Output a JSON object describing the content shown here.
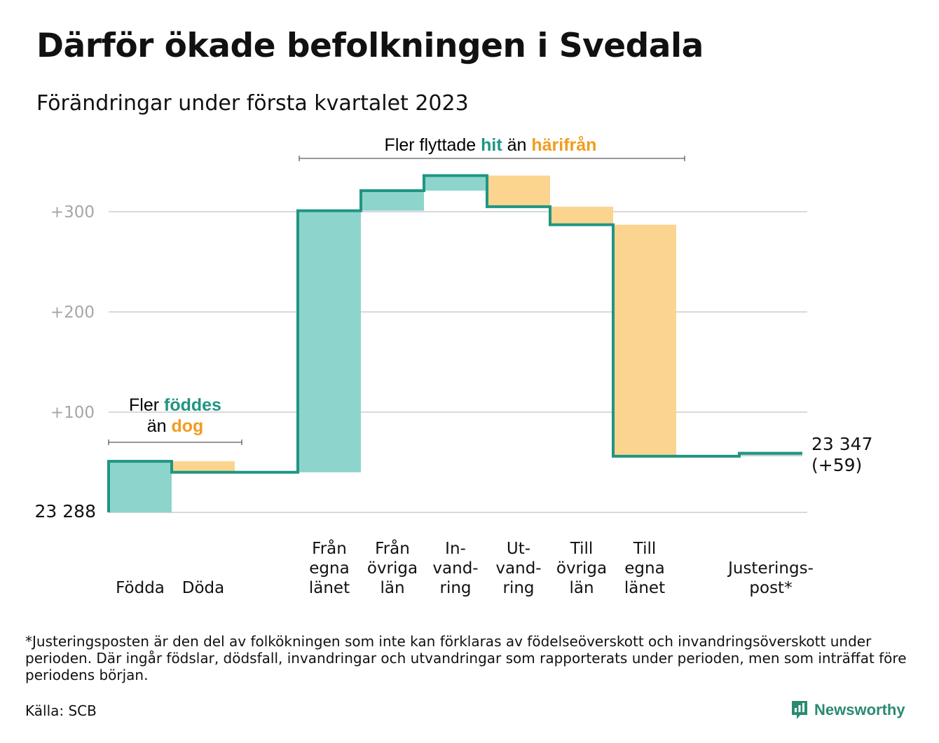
{
  "header": {
    "title": "Därför ökade befolkningen i Svedala",
    "subtitle": "Förändringar under första kvartalet 2023"
  },
  "annotations": {
    "births_line1_prefix": "Fler ",
    "births_line1_highlight": "föddes",
    "births_line2_prefix": "än ",
    "births_line2_highlight": "dog",
    "migration_prefix": "Fler flyttade ",
    "migration_hit": "hit",
    "migration_mid": " än ",
    "migration_from": "härifrån"
  },
  "colors": {
    "positive_fill": "#8dd5cc",
    "negative_fill": "#fbd58f",
    "adjustment_fill": "#c5cfcc",
    "step_line": "#1f9583",
    "highlight_teal": "#1f9583",
    "highlight_orange": "#f29c1f",
    "grid": "#d9d9d9",
    "tick_text": "#a6a6a6"
  },
  "chart_data": {
    "type": "waterfall",
    "start_value": 23288,
    "start_label": "23 288",
    "end_value": 23347,
    "end_label_line1": "23 347",
    "end_label_line2": "(+59)",
    "y_ticks": [
      {
        "value": 100,
        "label": "+100"
      },
      {
        "value": 200,
        "label": "+200"
      },
      {
        "value": 300,
        "label": "+300"
      }
    ],
    "ylim": [
      -10,
      340
    ],
    "grid": true,
    "steps": [
      {
        "lines": [
          "Födda"
        ],
        "change": 51,
        "kind": "positive"
      },
      {
        "lines": [
          "Döda"
        ],
        "change": -11,
        "kind": "negative"
      },
      {
        "lines": [],
        "change": 0,
        "kind": "gap"
      },
      {
        "lines": [
          "Från",
          "egna",
          "länet"
        ],
        "change": 261,
        "kind": "positive"
      },
      {
        "lines": [
          "Från",
          "övriga",
          "län"
        ],
        "change": 20,
        "kind": "positive"
      },
      {
        "lines": [
          "In-",
          "vand-",
          "ring"
        ],
        "change": 15,
        "kind": "positive"
      },
      {
        "lines": [
          "Ut-",
          "vand-",
          "ring"
        ],
        "change": -31,
        "kind": "negative"
      },
      {
        "lines": [
          "Till",
          "övriga",
          "län"
        ],
        "change": -18,
        "kind": "negative"
      },
      {
        "lines": [
          "Till",
          "egna",
          "länet"
        ],
        "change": -231,
        "kind": "negative"
      },
      {
        "lines": [],
        "change": 0,
        "kind": "gap"
      },
      {
        "lines": [
          "Justerings-",
          "post*"
        ],
        "change": 3,
        "kind": "adjustment"
      }
    ]
  },
  "footer": {
    "footnote": "*Justeringsposten är den del av folkökningen som inte kan förklaras av födelseöverskott och invandringsöverskott under perioden. Där ingår födslar, dödsfall, invandringar och utvandringar som rapporterats under perioden, men som inträffat före periodens början.",
    "source": "Källa: SCB",
    "brand": "Newsworthy"
  }
}
